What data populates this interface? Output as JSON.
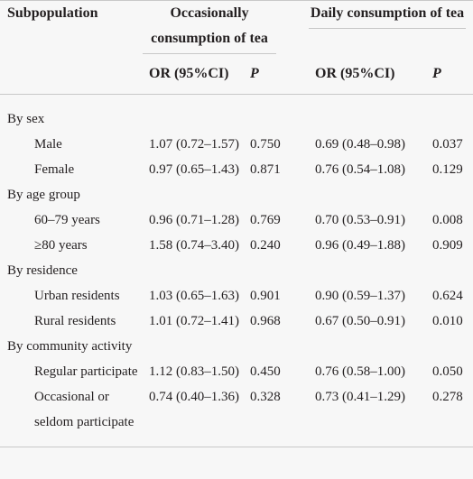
{
  "table": {
    "header": {
      "subpopulation": "Subpopulation",
      "groups": [
        "Occasionally consumption of tea",
        "Daily consumption of tea"
      ],
      "columns": [
        "OR (95%CI)",
        "P",
        "OR (95%CI)",
        "P"
      ]
    },
    "sections": [
      {
        "title": "By sex",
        "rows": [
          [
            "Male",
            "1.07 (0.72–1.57)",
            "0.750",
            "0.69 (0.48–0.98)",
            "0.037"
          ],
          [
            "Female",
            "0.97 (0.65–1.43)",
            "0.871",
            "0.76 (0.54–1.08)",
            "0.129"
          ]
        ]
      },
      {
        "title": "By age group",
        "rows": [
          [
            "60–79 years",
            "0.96 (0.71–1.28)",
            "0.769",
            "0.70 (0.53–0.91)",
            "0.008"
          ],
          [
            "≥80 years",
            "1.58 (0.74–3.40)",
            "0.240",
            "0.96 (0.49–1.88)",
            "0.909"
          ]
        ]
      },
      {
        "title": "By residence",
        "rows": [
          [
            "Urban residents",
            "1.03 (0.65–1.63)",
            "0.901",
            "0.90 (0.59–1.37)",
            "0.624"
          ],
          [
            "Rural residents",
            "1.01 (0.72–1.41)",
            "0.968",
            "0.67 (0.50–0.91)",
            "0.010"
          ]
        ]
      },
      {
        "title": "By community activity",
        "rows": [
          [
            "Regular participate",
            "1.12 (0.83–1.50)",
            "0.450",
            "0.76 (0.58–1.00)",
            "0.050"
          ],
          [
            "Occasional or seldom participate",
            "0.74 (0.40–1.36)",
            "0.328",
            "0.73 (0.41–1.29)",
            "0.278"
          ]
        ]
      }
    ]
  }
}
